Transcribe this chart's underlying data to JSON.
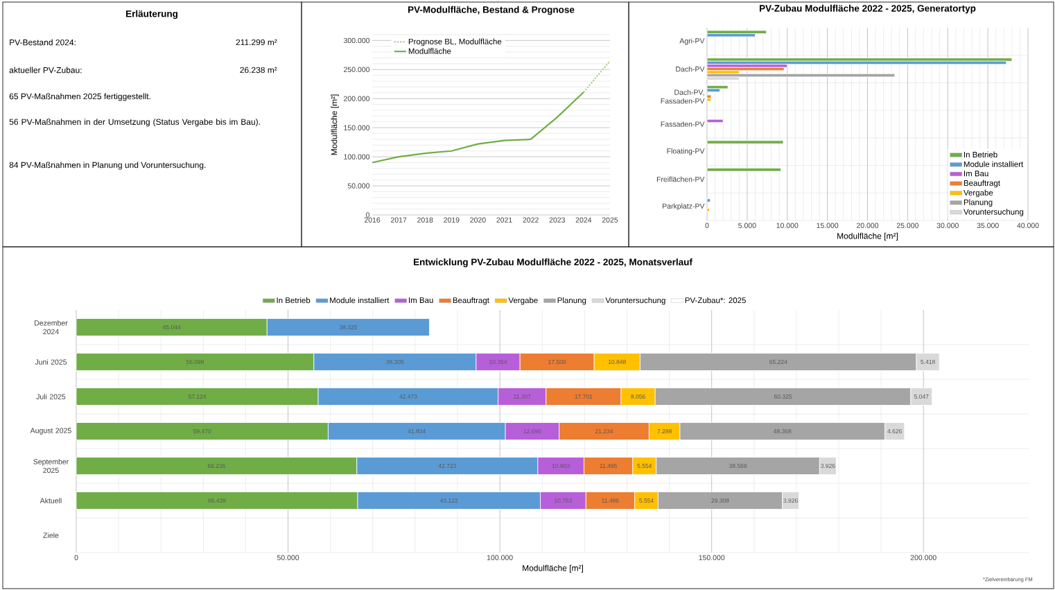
{
  "chart_data": [
    {
      "type": "other",
      "title": "Erläuterung",
      "annotations": [
        "PV-Bestand 2024:",
        "211.299 m²",
        "aktueller PV-Zubau:",
        "26.238 m²",
        "65 PV-Maßnahmen 2025 fertiggestellt.",
        "56 PV-Maßnahmen in der Umsetzung (Status Vergabe bis im Bau).",
        "84 PV-Maßnahmen in Planung und Voruntersuchung."
      ]
    },
    {
      "type": "line",
      "title": "PV-Modulfläche, Bestand & Prognose",
      "ylabel": "Modulfläche [m²]",
      "series": [
        {
          "name": "Prognose BL, Modulfläche",
          "color": "#a9d18e",
          "line_style": "dotted",
          "x": [
            2024,
            2025
          ],
          "values": [
            211000,
            265000
          ]
        },
        {
          "name": "Modulfläche",
          "color": "#70ad47",
          "line_style": "solid",
          "x": [
            2016,
            2017,
            2018,
            2019,
            2020,
            2021,
            2022,
            2023,
            2024
          ],
          "values": [
            90000,
            100000,
            106000,
            110000,
            122000,
            128000,
            130000,
            168000,
            211000
          ]
        }
      ],
      "xlim": [
        2016,
        2025
      ],
      "xticks": [
        2016,
        2017,
        2018,
        2019,
        2020,
        2021,
        2022,
        2023,
        2024,
        2025
      ],
      "ylim": [
        0,
        310000
      ],
      "yticks": [
        0,
        {
          "value": 50000,
          "label": "50.000"
        },
        {
          "value": 100000,
          "label": "100.000"
        },
        {
          "value": 150000,
          "label": "150.000"
        },
        {
          "value": 200000,
          "label": "200.000"
        },
        {
          "value": 250000,
          "label": "250.000"
        },
        {
          "value": 300000,
          "label": "300.000"
        }
      ],
      "grid": "y",
      "legend": "top left"
    },
    {
      "type": "bar",
      "orientation": "horizontal",
      "title": "PV-Zubau Modulfläche 2022 - 2025, Generatortyp",
      "xlabel": "Modulfläche [m²]",
      "categories": [
        "Agri-PV",
        "Dach-PV",
        "Dach-PV, Fassaden-PV",
        "Fassaden-PV",
        "Floating-PV",
        "Freiflächen-PV",
        "Parkplatz-PV"
      ],
      "series": [
        {
          "name": "In Betrieb",
          "color": "#70ad47",
          "values": [
            7400,
            38000,
            2600,
            null,
            9500,
            9200,
            null
          ]
        },
        {
          "name": "Module installiert",
          "color": "#5b9bd5",
          "values": [
            6000,
            37300,
            1600,
            null,
            null,
            null,
            400
          ]
        },
        {
          "name": "Im Bau",
          "color": "#b75fd9",
          "values": [
            null,
            10000,
            null,
            2000,
            null,
            null,
            null
          ]
        },
        {
          "name": "Beauftragt",
          "color": "#ed7d31",
          "values": [
            null,
            9600,
            500,
            null,
            null,
            null,
            null
          ]
        },
        {
          "name": "Vergabe",
          "color": "#ffc000",
          "values": [
            null,
            4000,
            500,
            null,
            null,
            null,
            300
          ]
        },
        {
          "name": "Planung",
          "color": "#a5a5a5",
          "values": [
            null,
            23400,
            null,
            null,
            null,
            null,
            null
          ]
        },
        {
          "name": "Voruntersuchung",
          "color": "#d9d9d9",
          "values": [
            null,
            4000,
            null,
            null,
            null,
            null,
            null
          ]
        }
      ],
      "xlim": [
        0,
        40000
      ],
      "xticks": [
        0,
        {
          "value": 5000,
          "label": "5.000"
        },
        {
          "value": 10000,
          "label": "10.000"
        },
        {
          "value": 15000,
          "label": "15.000"
        },
        {
          "value": 20000,
          "label": "20.000"
        },
        {
          "value": 25000,
          "label": "25.000"
        },
        {
          "value": 30000,
          "label": "30.000"
        },
        {
          "value": 35000,
          "label": "35.000"
        },
        {
          "value": 40000,
          "label": "40.000"
        }
      ],
      "grid": true,
      "legend": "bottom right"
    },
    {
      "type": "bar",
      "orientation": "horizontal",
      "stacked": true,
      "title": "Entwicklung PV-Zubau Modulfläche 2022 - 2025, Monatsverlauf",
      "xlabel": "Modulfläche [m²]",
      "categories": [
        "Dezember 2024",
        "Juni 2025",
        "Juli 2025",
        "August 2025",
        "September 2025",
        "Aktuell",
        "Ziele"
      ],
      "series": [
        {
          "name": "In Betrieb",
          "color": "#70ad47",
          "values": [
            45044,
            56099,
            57124,
            59470,
            66236,
            66439,
            null
          ],
          "value_labels": [
            "45.044",
            "56.099",
            "57.124",
            "59.470",
            "66.236",
            "66.439",
            null
          ]
        },
        {
          "name": "Module installiert",
          "color": "#5b9bd5",
          "values": [
            38325,
            38305,
            42473,
            41834,
            42723,
            43122,
            null
          ],
          "value_labels": [
            "38.325",
            "38.305",
            "42.473",
            "41.834",
            "42.723",
            "43.122",
            null
          ]
        },
        {
          "name": "Im Bau",
          "color": "#b75fd9",
          "values": [
            null,
            10354,
            11307,
            12690,
            10903,
            10763,
            null
          ],
          "value_labels": [
            null,
            "10.354",
            "11.307",
            "12.690",
            "10.903",
            "10.763",
            null
          ]
        },
        {
          "name": "Beauftragt",
          "color": "#ed7d31",
          "values": [
            null,
            17500,
            17701,
            21234,
            11495,
            11486,
            null
          ],
          "value_labels": [
            null,
            "17.500",
            "17.701",
            "21.234",
            "11.495",
            "11.486",
            null
          ]
        },
        {
          "name": "Vergabe",
          "color": "#ffc000",
          "values": [
            null,
            10848,
            8056,
            7288,
            5554,
            5554,
            null
          ],
          "value_labels": [
            null,
            "10.848",
            "8.056",
            "7.288",
            "5.554",
            "5.554",
            null
          ]
        },
        {
          "name": "Planung",
          "color": "#a5a5a5",
          "values": [
            null,
            65224,
            60325,
            48368,
            38569,
            29308,
            null
          ],
          "value_labels": [
            null,
            "65.224",
            "60.325",
            "48.368",
            "38.569",
            "29.308",
            null
          ]
        },
        {
          "name": "Voruntersuchung",
          "color": "#d9d9d9",
          "values": [
            null,
            5418,
            5047,
            4626,
            3926,
            3926,
            null
          ],
          "value_labels": [
            null,
            "5.418",
            "5.047",
            "4.626",
            "3.926",
            "3.926",
            null
          ]
        },
        {
          "name": "PV-Zubau*: 2025",
          "color": "#ffffff",
          "values": [
            null,
            null,
            null,
            null,
            null,
            null,
            null
          ]
        }
      ],
      "xlim": [
        0,
        225000
      ],
      "xticks": [
        0,
        {
          "value": 50000,
          "label": "50.000"
        },
        {
          "value": 100000,
          "label": "100.000"
        },
        {
          "value": 150000,
          "label": "150.000"
        },
        {
          "value": 200000,
          "label": "200.000"
        }
      ],
      "grid": true,
      "legend": "top",
      "annotations": [
        "*Zielvereinbarung FM"
      ]
    }
  ]
}
